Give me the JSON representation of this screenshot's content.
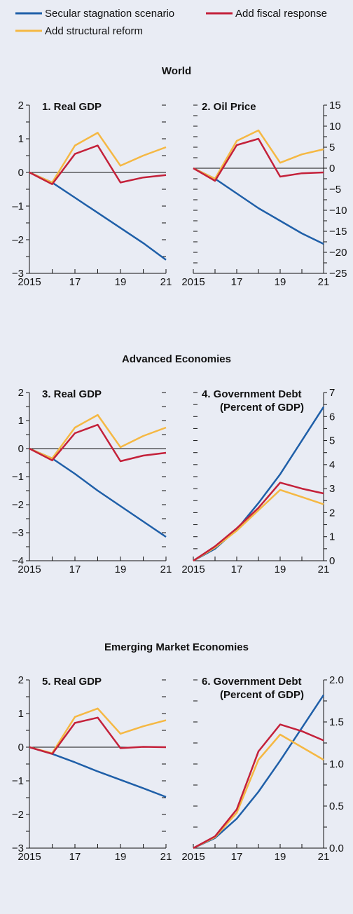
{
  "legend": [
    {
      "name": "Secular stagnation scenario",
      "color": "#1f5fa8"
    },
    {
      "name": "Add fiscal response",
      "color": "#c4213a"
    },
    {
      "name": "Add structural reform",
      "color": "#f5b843"
    }
  ],
  "sections": [
    {
      "title": "World"
    },
    {
      "title": "Advanced Economies"
    },
    {
      "title": "Emerging Market Economies"
    }
  ],
  "chart_data": [
    {
      "type": "line",
      "title": "1. Real GDP",
      "x": [
        "2015",
        "16",
        "17",
        "18",
        "19",
        "20",
        "21"
      ],
      "x_tick_labels": [
        "2015",
        "17",
        "19",
        "21"
      ],
      "ylim": [
        -3,
        2
      ],
      "y_tick_labels": [
        "−3",
        "–2",
        "–1",
        "0",
        "1",
        "2"
      ],
      "series": [
        {
          "name": "Secular stagnation scenario",
          "values": [
            0,
            -0.3,
            -0.75,
            -1.2,
            -1.65,
            -2.1,
            -2.6
          ]
        },
        {
          "name": "Add fiscal response",
          "values": [
            0,
            -0.35,
            0.55,
            0.8,
            -0.3,
            -0.15,
            -0.08
          ]
        },
        {
          "name": "Add structural reform",
          "values": [
            0,
            -0.3,
            0.8,
            1.18,
            0.2,
            0.5,
            0.75
          ]
        }
      ]
    },
    {
      "type": "line",
      "title": "2. Oil Price",
      "x": [
        "2015",
        "16",
        "17",
        "18",
        "19",
        "20",
        "21"
      ],
      "x_tick_labels": [
        "2015",
        "17",
        "19",
        "21"
      ],
      "ylim": [
        -25,
        15
      ],
      "y_tick_labels": [
        "−25",
        "−20",
        "−15",
        "−10",
        "−5",
        "0",
        "5",
        "10",
        "15"
      ],
      "series": [
        {
          "name": "Secular stagnation scenario",
          "values": [
            0,
            -2.5,
            -6,
            -9.5,
            -12.5,
            -15.5,
            -18
          ]
        },
        {
          "name": "Add fiscal response",
          "values": [
            0,
            -3,
            5.5,
            7,
            -2,
            -1.2,
            -1
          ]
        },
        {
          "name": "Add structural reform",
          "values": [
            0,
            -2.5,
            6.5,
            9,
            1.3,
            3.3,
            4.5
          ]
        }
      ]
    },
    {
      "type": "line",
      "title": "3. Real GDP",
      "x": [
        "2015",
        "16",
        "17",
        "18",
        "19",
        "20",
        "21"
      ],
      "x_tick_labels": [
        "2015",
        "17",
        "19",
        "21"
      ],
      "ylim": [
        -4,
        2
      ],
      "y_tick_labels": [
        "−4",
        "−3",
        "−2",
        "−1",
        "0",
        "1",
        "2"
      ],
      "series": [
        {
          "name": "Secular stagnation scenario",
          "values": [
            0,
            -0.35,
            -0.9,
            -1.5,
            -2.05,
            -2.6,
            -3.15
          ]
        },
        {
          "name": "Add fiscal response",
          "values": [
            0,
            -0.42,
            0.55,
            0.85,
            -0.45,
            -0.25,
            -0.15
          ]
        },
        {
          "name": "Add structural reform",
          "values": [
            0,
            -0.35,
            0.75,
            1.2,
            0.05,
            0.45,
            0.75
          ]
        }
      ]
    },
    {
      "type": "line",
      "title": "4. Government Debt",
      "subtitle": "(Percent of GDP)",
      "x": [
        "2015",
        "16",
        "17",
        "18",
        "19",
        "20",
        "21"
      ],
      "x_tick_labels": [
        "2015",
        "17",
        "19",
        "21"
      ],
      "ylim": [
        0,
        7
      ],
      "y_tick_labels": [
        "0",
        "1",
        "2",
        "3",
        "4",
        "5",
        "6",
        "7"
      ],
      "series": [
        {
          "name": "Secular stagnation scenario",
          "values": [
            0,
            0.5,
            1.3,
            2.4,
            3.6,
            5.0,
            6.4
          ]
        },
        {
          "name": "Add fiscal response",
          "values": [
            0,
            0.6,
            1.35,
            2.2,
            3.25,
            3.0,
            2.8
          ]
        },
        {
          "name": "Add structural reform",
          "values": [
            0,
            0.55,
            1.25,
            2.1,
            2.95,
            2.65,
            2.35
          ]
        }
      ]
    },
    {
      "type": "line",
      "title": "5. Real GDP",
      "x": [
        "2015",
        "16",
        "17",
        "18",
        "19",
        "20",
        "21"
      ],
      "x_tick_labels": [
        "2015",
        "17",
        "19",
        "21"
      ],
      "ylim": [
        -3,
        2
      ],
      "y_tick_labels": [
        "−3",
        "−2",
        "−1",
        "0",
        "1",
        "2"
      ],
      "series": [
        {
          "name": "Secular stagnation scenario",
          "values": [
            0,
            -0.2,
            -0.45,
            -0.72,
            -0.97,
            -1.22,
            -1.48
          ]
        },
        {
          "name": "Add fiscal response",
          "values": [
            0,
            -0.2,
            0.72,
            0.88,
            -0.03,
            0.01,
            0.0
          ]
        },
        {
          "name": "Add structural reform",
          "values": [
            0,
            -0.18,
            0.9,
            1.15,
            0.4,
            0.62,
            0.8
          ]
        }
      ]
    },
    {
      "type": "line",
      "title": "6. Government Debt",
      "subtitle": "(Percent of GDP)",
      "x": [
        "2015",
        "16",
        "17",
        "18",
        "19",
        "20",
        "21"
      ],
      "x_tick_labels": [
        "2015",
        "17",
        "19",
        "21"
      ],
      "ylim": [
        0,
        2
      ],
      "y_tick_labels": [
        "0.0",
        "0.5",
        "1.0",
        "1.5",
        "2.0"
      ],
      "series": [
        {
          "name": "Secular stagnation scenario",
          "values": [
            0,
            0.12,
            0.35,
            0.67,
            1.04,
            1.43,
            1.82
          ]
        },
        {
          "name": "Add fiscal response",
          "values": [
            0,
            0.14,
            0.46,
            1.15,
            1.47,
            1.39,
            1.28
          ]
        },
        {
          "name": "Add structural reform",
          "values": [
            0,
            0.13,
            0.42,
            1.05,
            1.35,
            1.2,
            1.05
          ]
        }
      ]
    }
  ]
}
